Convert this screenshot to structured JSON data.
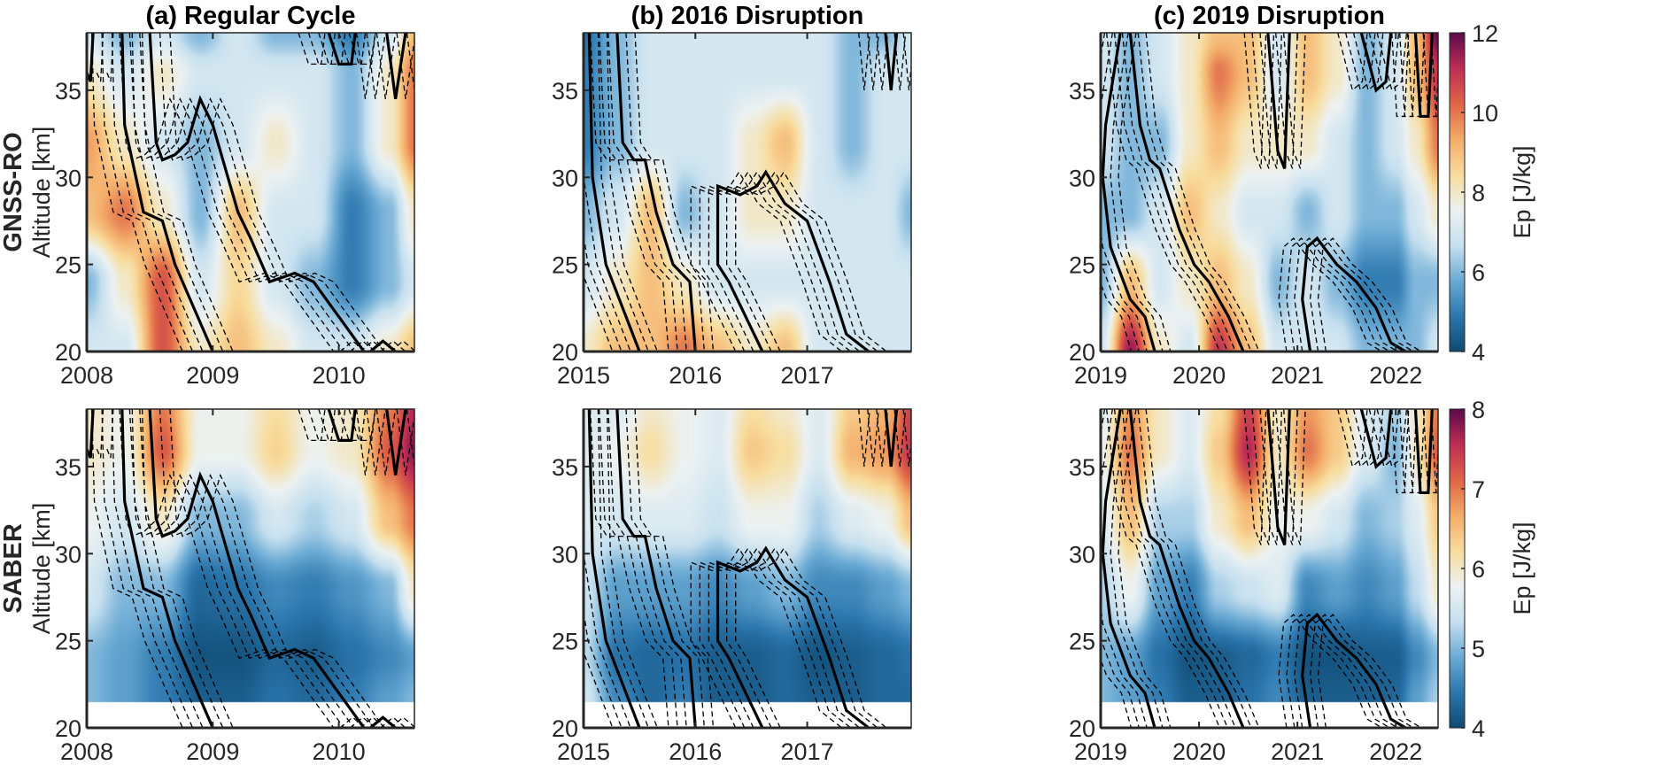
{
  "colors": {
    "colormap": [
      "#0e4a72",
      "#2b76ad",
      "#6aaad4",
      "#c6e0ef",
      "#ecf2f2",
      "#f8dd9e",
      "#f4ad6a",
      "#df6647",
      "#bf2f55",
      "#5c0a4d"
    ],
    "white_band": "#ffffff",
    "contour": "#000000"
  },
  "chart_data": [
    {
      "type": "heatmap",
      "panel": "a",
      "row": "GNSS-RO",
      "title": "(a) Regular Cycle",
      "ylabel": "Altitude [km]",
      "row_label": "GNSS-RO",
      "xlim": [
        2008,
        2010.6
      ],
      "ylim": [
        20,
        38.3
      ],
      "xticks": [
        "2008",
        "2009",
        "2010"
      ],
      "xtick_values": [
        2008,
        2009,
        2010
      ],
      "yticks": [
        "20",
        "25",
        "30",
        "35"
      ],
      "ytick_values": [
        20,
        25,
        30,
        35
      ],
      "clim": [
        4,
        12
      ],
      "times": [
        2008,
        2008.3,
        2008.6,
        2008.9,
        2009.2,
        2009.5,
        2009.8,
        2010.1,
        2010.4,
        2010.6
      ],
      "altitudes": [
        20,
        24,
        28,
        32,
        36,
        38.3
      ],
      "values": [
        [
          7,
          7,
          10.5,
          8,
          9,
          8,
          7,
          7,
          8,
          9
        ],
        [
          6,
          8,
          10.5,
          7,
          8.5,
          7,
          6,
          5,
          6,
          7
        ],
        [
          9,
          10,
          8,
          6,
          9,
          7,
          7,
          5,
          6,
          8
        ],
        [
          9.5,
          8,
          7,
          6,
          7,
          8,
          7,
          6,
          8,
          10
        ],
        [
          8,
          7,
          8,
          7,
          7,
          7,
          7,
          6,
          8,
          10
        ],
        [
          7,
          6,
          7,
          6,
          7,
          6,
          6,
          5,
          7,
          9
        ]
      ],
      "solid_contours": [
        [
          [
            2008,
            36
          ],
          [
            2008.03,
            35.5
          ],
          [
            2008.05,
            38.3
          ]
        ],
        [
          [
            2008.28,
            38.3
          ],
          [
            2008.3,
            33
          ],
          [
            2008.45,
            28
          ],
          [
            2008.6,
            27.5
          ],
          [
            2008.7,
            25
          ],
          [
            2009.0,
            20
          ]
        ],
        [
          [
            2008.5,
            38.3
          ],
          [
            2008.55,
            32
          ],
          [
            2008.6,
            31
          ],
          [
            2008.7,
            31.3
          ],
          [
            2008.8,
            32
          ],
          [
            2008.9,
            34.5
          ],
          [
            2009.0,
            33
          ],
          [
            2009.2,
            28
          ],
          [
            2009.3,
            26.5
          ],
          [
            2009.45,
            24
          ],
          [
            2009.65,
            24.5
          ],
          [
            2009.8,
            24
          ],
          [
            2010.0,
            22
          ],
          [
            2010.2,
            20
          ]
        ],
        [
          [
            2010.25,
            20
          ],
          [
            2010.35,
            20.6
          ],
          [
            2010.45,
            20
          ]
        ],
        [
          [
            2009.92,
            38.3
          ],
          [
            2010.0,
            36.5
          ],
          [
            2010.1,
            36.5
          ],
          [
            2010.13,
            38.3
          ]
        ],
        [
          [
            2010.38,
            38.3
          ],
          [
            2010.45,
            34.5
          ],
          [
            2010.53,
            38.3
          ]
        ]
      ]
    },
    {
      "type": "heatmap",
      "panel": "b",
      "row": "GNSS-RO",
      "title": "(b) 2016 Disruption",
      "xlim": [
        2015,
        2017.93
      ],
      "ylim": [
        20,
        38.3
      ],
      "xticks": [
        "2015",
        "2016",
        "2017"
      ],
      "xtick_values": [
        2015,
        2016,
        2017
      ],
      "yticks": [
        "20",
        "25",
        "30",
        "35"
      ],
      "ytick_values": [
        20,
        25,
        30,
        35
      ],
      "clim": [
        4,
        12
      ],
      "times": [
        2015,
        2015.3,
        2015.6,
        2015.9,
        2016.2,
        2016.5,
        2016.8,
        2017.1,
        2017.4,
        2017.7,
        2017.93
      ],
      "altitudes": [
        20,
        24,
        28,
        32,
        36,
        38.3
      ],
      "values": [
        [
          8,
          9,
          9,
          10,
          9,
          8,
          9,
          7,
          7,
          7,
          7
        ],
        [
          7,
          8,
          9,
          8,
          7,
          7,
          7,
          7,
          7,
          7,
          7
        ],
        [
          6,
          7,
          9,
          6,
          7,
          8,
          8,
          7,
          7,
          7,
          6
        ],
        [
          5,
          6,
          7,
          7,
          7,
          8,
          9,
          7,
          6,
          7,
          7
        ],
        [
          5,
          6,
          7,
          7,
          7,
          7,
          7,
          7,
          6,
          7,
          7
        ],
        [
          4.8,
          6,
          7,
          7,
          7,
          7,
          7,
          7,
          6,
          6,
          7
        ]
      ],
      "solid_contours": [
        [
          [
            2015.05,
            38.3
          ],
          [
            2015.08,
            30
          ],
          [
            2015.2,
            25
          ],
          [
            2015.5,
            20
          ]
        ],
        [
          [
            2015.3,
            38.3
          ],
          [
            2015.35,
            32
          ],
          [
            2015.45,
            31
          ],
          [
            2015.55,
            31
          ],
          [
            2015.65,
            28
          ],
          [
            2015.8,
            25
          ],
          [
            2015.95,
            24
          ],
          [
            2016.0,
            20
          ]
        ],
        [
          [
            2016.6,
            20
          ],
          [
            2016.3,
            24
          ],
          [
            2016.2,
            25
          ],
          [
            2016.2,
            29.5
          ],
          [
            2016.4,
            29
          ],
          [
            2016.55,
            29.5
          ],
          [
            2016.63,
            30.3
          ],
          [
            2016.8,
            28.5
          ],
          [
            2017.0,
            27.5
          ],
          [
            2017.2,
            24
          ],
          [
            2017.35,
            21
          ],
          [
            2017.55,
            20
          ]
        ],
        [
          [
            2017.7,
            38.3
          ],
          [
            2017.75,
            35
          ],
          [
            2017.8,
            38.3
          ]
        ]
      ]
    },
    {
      "type": "heatmap",
      "panel": "c",
      "row": "GNSS-RO",
      "title": "(c) 2019 Disruption",
      "xlim": [
        2019,
        2022.43
      ],
      "ylim": [
        20,
        38.3
      ],
      "xticks": [
        "2019",
        "2020",
        "2021",
        "2022"
      ],
      "xtick_values": [
        2019,
        2020,
        2021,
        2022
      ],
      "yticks": [
        "20",
        "25",
        "30",
        "35"
      ],
      "ytick_values": [
        20,
        25,
        30,
        35
      ],
      "clim": [
        4,
        12
      ],
      "colorbar_label": "Ep [J/kg]",
      "colorbar_ticks": [
        "4",
        "6",
        "8",
        "10",
        "12"
      ],
      "colorbar_tick_values": [
        4,
        6,
        8,
        10,
        12
      ],
      "times": [
        2019,
        2019.3,
        2019.6,
        2019.9,
        2020.2,
        2020.5,
        2020.8,
        2021.1,
        2021.4,
        2021.7,
        2022,
        2022.2,
        2022.43
      ],
      "altitudes": [
        20,
        24,
        28,
        32,
        36,
        38.3
      ],
      "values": [
        [
          7,
          11.5,
          8,
          7,
          11,
          9,
          7,
          7,
          7,
          6,
          6,
          6,
          7
        ],
        [
          6,
          9,
          7,
          8,
          9,
          8,
          6,
          7,
          6,
          5,
          5,
          6,
          6
        ],
        [
          6,
          6,
          7,
          9,
          8,
          7,
          7,
          6,
          7,
          6,
          6,
          7,
          8
        ],
        [
          7,
          6,
          6,
          8,
          9,
          8,
          8,
          8,
          7,
          6,
          7,
          8,
          10
        ],
        [
          7,
          6,
          7,
          8,
          10,
          9,
          7,
          9,
          8,
          6,
          7,
          9,
          11
        ],
        [
          7,
          6,
          7,
          8,
          9,
          9,
          7,
          9,
          8,
          6,
          7,
          9,
          12
        ]
      ],
      "solid_contours": [
        [
          [
            2019.2,
            38.3
          ],
          [
            2019.05,
            33
          ],
          [
            2019.02,
            30
          ],
          [
            2019.1,
            26
          ],
          [
            2019.3,
            23
          ],
          [
            2019.45,
            22
          ],
          [
            2019.55,
            20
          ]
        ],
        [
          [
            2019.3,
            38.3
          ],
          [
            2019.4,
            33
          ],
          [
            2019.5,
            31
          ],
          [
            2019.6,
            30.5
          ],
          [
            2019.8,
            27
          ],
          [
            2019.95,
            25
          ],
          [
            2020.1,
            24
          ],
          [
            2020.3,
            22
          ],
          [
            2020.45,
            20
          ]
        ],
        [
          [
            2020.7,
            38.3
          ],
          [
            2020.8,
            31.5
          ],
          [
            2020.87,
            30.5
          ],
          [
            2020.92,
            38.3
          ]
        ],
        [
          [
            2021.13,
            20
          ],
          [
            2021.05,
            23
          ],
          [
            2021.1,
            26
          ],
          [
            2021.2,
            26.5
          ],
          [
            2021.4,
            25
          ],
          [
            2021.6,
            24
          ],
          [
            2021.8,
            22.5
          ],
          [
            2021.95,
            20.5
          ],
          [
            2022.1,
            20
          ]
        ],
        [
          [
            2021.65,
            38.3
          ],
          [
            2021.8,
            35
          ],
          [
            2021.9,
            35.5
          ],
          [
            2021.95,
            38.3
          ]
        ],
        [
          [
            2022.2,
            38.3
          ],
          [
            2022.25,
            33.5
          ],
          [
            2022.33,
            33.5
          ],
          [
            2022.37,
            38.3
          ]
        ]
      ]
    },
    {
      "type": "heatmap",
      "panel": "a",
      "row": "SABER",
      "ylabel": "Altitude [km]",
      "row_label": "SABER",
      "xlim": [
        2008,
        2010.6
      ],
      "ylim": [
        20,
        38.3
      ],
      "data_floor": 21.5,
      "xticks": [
        "2008",
        "2009",
        "2010"
      ],
      "xtick_values": [
        2008,
        2009,
        2010
      ],
      "yticks": [
        "20",
        "25",
        "30",
        "35"
      ],
      "ytick_values": [
        20,
        25,
        30,
        35
      ],
      "clim": [
        4,
        8
      ],
      "times": [
        2008,
        2008.3,
        2008.6,
        2008.9,
        2009.2,
        2009.5,
        2009.8,
        2010.1,
        2010.4,
        2010.6
      ],
      "altitudes": [
        21.5,
        24,
        28,
        32,
        36,
        38.3
      ],
      "values": [
        [
          5,
          4.8,
          4.5,
          4.2,
          4.2,
          4.4,
          4.3,
          4.5,
          4.8,
          5
        ],
        [
          5,
          4.8,
          4.5,
          4.1,
          4.1,
          4.3,
          4.2,
          4.4,
          4.6,
          4.8
        ],
        [
          5.5,
          5,
          5,
          4.3,
          4.4,
          4.6,
          4.5,
          4.7,
          5,
          6
        ],
        [
          5.8,
          5.5,
          6,
          5,
          5,
          5.5,
          5.2,
          5.5,
          6.5,
          7
        ],
        [
          6,
          5.8,
          7.2,
          5.8,
          5.8,
          6.3,
          5.8,
          6,
          7.2,
          7.8
        ],
        [
          6,
          5.8,
          7,
          5.8,
          5.8,
          6.2,
          5.8,
          6,
          7,
          7.6
        ]
      ],
      "solid_contours": "same as GNSS-RO panel a"
    },
    {
      "type": "heatmap",
      "panel": "b",
      "row": "SABER",
      "xlim": [
        2015,
        2017.93
      ],
      "ylim": [
        20,
        38.3
      ],
      "data_floor": 21.5,
      "xticks": [
        "2015",
        "2016",
        "2017"
      ],
      "xtick_values": [
        2015,
        2016,
        2017
      ],
      "yticks": [
        "20",
        "25",
        "30",
        "35"
      ],
      "ytick_values": [
        20,
        25,
        30,
        35
      ],
      "clim": [
        4,
        8
      ],
      "times": [
        2015,
        2015.3,
        2015.6,
        2015.9,
        2016.2,
        2016.5,
        2016.8,
        2017.1,
        2017.4,
        2017.7,
        2017.93
      ],
      "altitudes": [
        21.5,
        24,
        28,
        32,
        36,
        38.3
      ],
      "values": [
        [
          5.5,
          4.6,
          4.3,
          4.5,
          4.2,
          4.2,
          4.3,
          4.2,
          4.2,
          4.3,
          4.3
        ],
        [
          5.3,
          4.4,
          4.3,
          4.4,
          4.2,
          4.2,
          4.3,
          4.1,
          4.2,
          4.3,
          4.4
        ],
        [
          5.4,
          4.8,
          4.8,
          4.8,
          4.6,
          4.8,
          5,
          4.6,
          4.6,
          4.8,
          5
        ],
        [
          5.6,
          5.5,
          5.6,
          5.6,
          5.4,
          5.8,
          5.8,
          5.2,
          5.6,
          5.8,
          6.5
        ],
        [
          5.6,
          5.8,
          6.2,
          5.8,
          5.6,
          6.4,
          6.2,
          5.6,
          6.6,
          6.8,
          7.5
        ],
        [
          5.6,
          5.6,
          6,
          5.8,
          5.6,
          6.2,
          6,
          5.6,
          6.4,
          6.6,
          7.4
        ]
      ],
      "solid_contours": "same as GNSS-RO panel b"
    },
    {
      "type": "heatmap",
      "panel": "c",
      "row": "SABER",
      "xlim": [
        2019,
        2022.43
      ],
      "ylim": [
        20,
        38.3
      ],
      "data_floor": 21.5,
      "xticks": [
        "2019",
        "2020",
        "2021",
        "2022"
      ],
      "xtick_values": [
        2019,
        2020,
        2021,
        2022
      ],
      "yticks": [
        "20",
        "25",
        "30",
        "35"
      ],
      "ytick_values": [
        20,
        25,
        30,
        35
      ],
      "clim": [
        4,
        8
      ],
      "colorbar_label": "Ep [J/kg]",
      "colorbar_ticks": [
        "4",
        "5",
        "6",
        "7",
        "8"
      ],
      "colorbar_tick_values": [
        4,
        5,
        6,
        7,
        8
      ],
      "times": [
        2019,
        2019.3,
        2019.6,
        2019.9,
        2020.2,
        2020.5,
        2020.8,
        2021.1,
        2021.4,
        2021.7,
        2022,
        2022.2,
        2022.43
      ],
      "altitudes": [
        21.5,
        24,
        28,
        32,
        36,
        38.3
      ],
      "values": [
        [
          5,
          4.8,
          4.5,
          4.2,
          4.2,
          4.4,
          4.6,
          4.2,
          4.2,
          4.2,
          4.3,
          4.8,
          5.2
        ],
        [
          5,
          4.8,
          4.4,
          4.1,
          4.2,
          4.3,
          4.5,
          4.1,
          4.1,
          4.2,
          4.2,
          4.6,
          5
        ],
        [
          5.2,
          5.8,
          4.8,
          4.5,
          5.2,
          5.4,
          5.6,
          4.6,
          4.8,
          4.6,
          4.8,
          5.3,
          6
        ],
        [
          5.6,
          6.5,
          5.2,
          5.2,
          6,
          6.5,
          5.8,
          5.8,
          5.5,
          5,
          5.2,
          5.6,
          6.4
        ],
        [
          5.8,
          7,
          6,
          5.6,
          6.4,
          7.6,
          6,
          7,
          6.4,
          5.6,
          5,
          6,
          7.2
        ],
        [
          5.6,
          6.8,
          6,
          5.6,
          6.2,
          7.4,
          6,
          6.8,
          6.4,
          5.6,
          5.2,
          6,
          7
        ]
      ],
      "solid_contours": "same as GNSS-RO panel c"
    }
  ]
}
